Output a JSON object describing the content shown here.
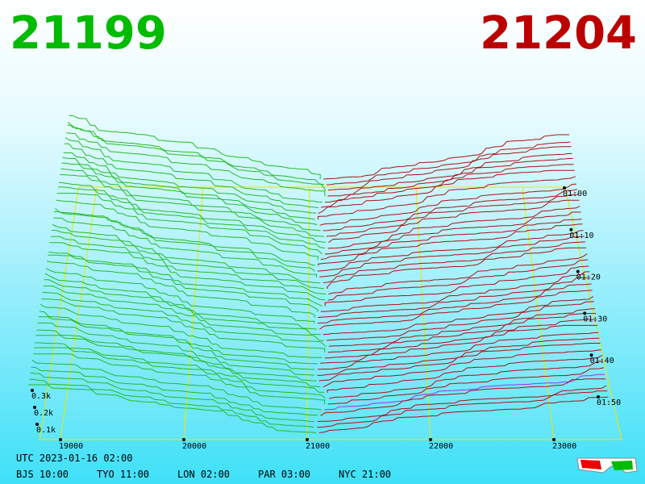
{
  "header": {
    "bid": "21199",
    "ask": "21204"
  },
  "price_axis": {
    "labels": [
      "19000",
      "20000",
      "21000",
      "22000",
      "23000"
    ]
  },
  "depth_axis": {
    "labels": [
      "0.3k",
      "0.2k",
      "0.1k"
    ]
  },
  "time_axis": {
    "labels": [
      "01:00",
      "01:10",
      "01:20",
      "01:30",
      "01:40",
      "01:50"
    ]
  },
  "footer": {
    "utc": "UTC 2023-01-16 02:00",
    "zones": [
      "BJS 10:00",
      "TYO 11:00",
      "LON 02:00",
      "PAR 03:00",
      "NYC 21:00"
    ]
  }
}
